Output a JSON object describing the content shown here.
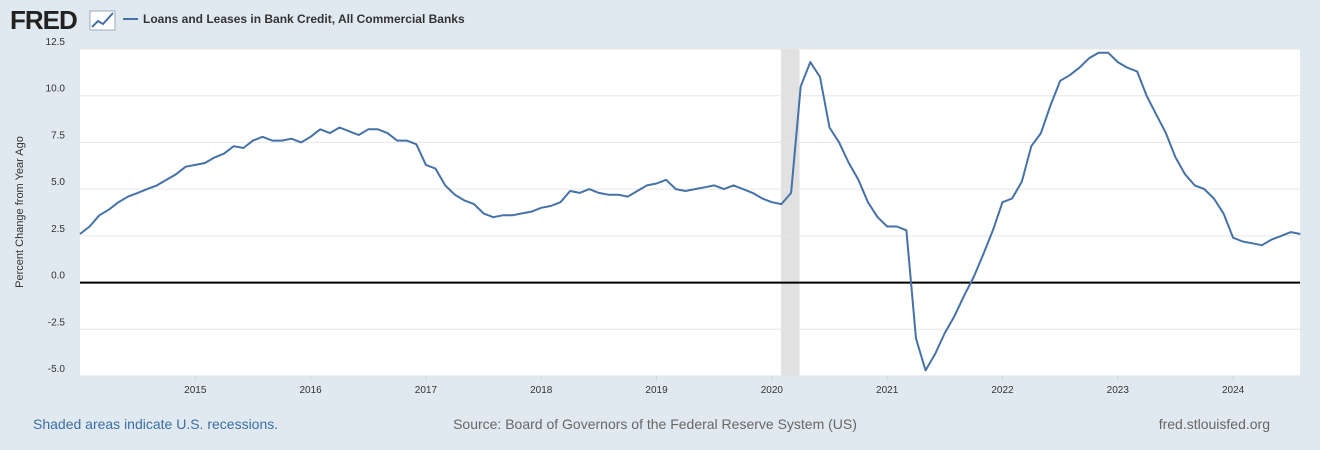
{
  "logo": "FRED",
  "chart_data": {
    "type": "line",
    "y_label": "Percent Change from Year Ago",
    "x": [
      2014,
      2014.083,
      2014.167,
      2014.25,
      2014.333,
      2014.417,
      2014.5,
      2014.583,
      2014.667,
      2014.75,
      2014.833,
      2014.917,
      2015,
      2015.083,
      2015.167,
      2015.25,
      2015.333,
      2015.417,
      2015.5,
      2015.583,
      2015.667,
      2015.75,
      2015.833,
      2015.917,
      2016,
      2016.083,
      2016.167,
      2016.25,
      2016.333,
      2016.417,
      2016.5,
      2016.583,
      2016.667,
      2016.75,
      2016.833,
      2016.917,
      2017,
      2017.083,
      2017.167,
      2017.25,
      2017.333,
      2017.417,
      2017.5,
      2017.583,
      2017.667,
      2017.75,
      2017.833,
      2017.917,
      2018,
      2018.083,
      2018.167,
      2018.25,
      2018.333,
      2018.417,
      2018.5,
      2018.583,
      2018.667,
      2018.75,
      2018.833,
      2018.917,
      2019,
      2019.083,
      2019.167,
      2019.25,
      2019.333,
      2019.417,
      2019.5,
      2019.583,
      2019.667,
      2019.75,
      2019.833,
      2019.917,
      2020,
      2020.083,
      2020.167,
      2020.25,
      2020.333,
      2020.417,
      2020.5,
      2020.583,
      2020.667,
      2020.75,
      2020.833,
      2020.917,
      2021,
      2021.083,
      2021.167,
      2021.25,
      2021.333,
      2021.417,
      2021.5,
      2021.583,
      2021.667,
      2021.75,
      2021.833,
      2021.917,
      2022,
      2022.083,
      2022.167,
      2022.25,
      2022.333,
      2022.417,
      2022.5,
      2022.583,
      2022.667,
      2022.75,
      2022.833,
      2022.917,
      2023,
      2023.083,
      2023.167,
      2023.25,
      2023.333,
      2023.417,
      2023.5,
      2023.583,
      2023.667,
      2023.75,
      2023.833,
      2023.917,
      2024,
      2024.083,
      2024.167,
      2024.25,
      2024.333,
      2024.417,
      2024.5,
      2024.583
    ],
    "series": [
      {
        "name": "Loans and Leases in Bank Credit, All Commercial Banks",
        "color": "#4572a7",
        "values": [
          2.6,
          3.0,
          3.6,
          3.9,
          4.3,
          4.6,
          4.8,
          5.0,
          5.2,
          5.5,
          5.8,
          6.2,
          6.3,
          6.4,
          6.7,
          6.9,
          7.3,
          7.2,
          7.6,
          7.8,
          7.6,
          7.6,
          7.7,
          7.5,
          7.8,
          8.2,
          8.0,
          8.3,
          8.1,
          7.9,
          8.2,
          8.2,
          8.0,
          7.6,
          7.6,
          7.4,
          6.3,
          6.1,
          5.2,
          4.7,
          4.4,
          4.2,
          3.7,
          3.5,
          3.6,
          3.6,
          3.7,
          3.8,
          4.0,
          4.1,
          4.3,
          4.9,
          4.8,
          5.0,
          4.8,
          4.7,
          4.7,
          4.6,
          4.9,
          5.2,
          5.3,
          5.5,
          5.0,
          4.9,
          5.0,
          5.1,
          5.2,
          5.0,
          5.2,
          5.0,
          4.8,
          4.5,
          4.3,
          4.2,
          4.8,
          10.5,
          11.8,
          11.0,
          8.3,
          7.5,
          6.4,
          5.5,
          4.3,
          3.5,
          3.0,
          3.0,
          2.8,
          -3.0,
          -4.7,
          -3.8,
          -2.7,
          -1.8,
          -0.7,
          0.3,
          1.5,
          2.8,
          4.3,
          4.5,
          5.4,
          7.3,
          8.0,
          9.5,
          10.8,
          11.1,
          11.5,
          12.0,
          12.3,
          12.3,
          11.8,
          11.5,
          11.3,
          10.0,
          9.0,
          8.0,
          6.7,
          5.8,
          5.2,
          5.0,
          4.5,
          3.7,
          2.4,
          2.2,
          2.1,
          2.0,
          2.3,
          2.5,
          2.7,
          2.6
        ]
      }
    ],
    "recessions": [
      [
        2020.08,
        2020.24
      ]
    ],
    "xlim": [
      2014,
      2024.58
    ],
    "xticks": [
      2015,
      2016,
      2017,
      2018,
      2019,
      2020,
      2021,
      2022,
      2023,
      2024
    ],
    "ylim": [
      -5,
      12.5
    ],
    "yticks": [
      {
        "value": -5,
        "label": "-5.0"
      },
      -2.5,
      {
        "value": 0,
        "label": "0.0"
      },
      2.5,
      {
        "value": 5,
        "label": "5.0"
      },
      7.5,
      {
        "value": 10,
        "label": "10.0"
      },
      12.5
    ],
    "grid": true,
    "footer": {
      "left": "Shaded areas indicate U.S. recessions.",
      "center": "Source: Board of Governors of the Federal Reserve System (US)",
      "right": "fred.stlouisfed.org"
    }
  }
}
